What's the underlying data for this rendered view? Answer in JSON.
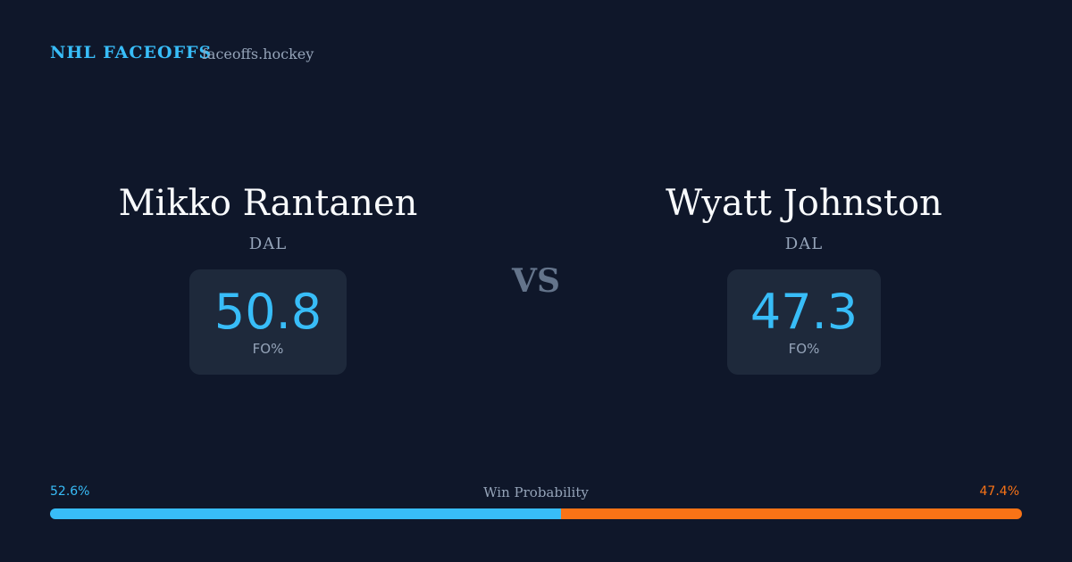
{
  "header": {
    "title": "NHL FACEOFFS",
    "site": "faceoffs.hockey"
  },
  "players": [
    {
      "name": "Mikko Rantanen",
      "team": "DAL",
      "stat": 50.8,
      "stat_label": "FO%"
    },
    {
      "name": "Wyatt Johnston",
      "team": "DAL",
      "stat": 47.3,
      "stat_label": "FO%"
    }
  ],
  "versus": "VS",
  "win_probability": {
    "label": "Win Probability",
    "values": [
      52.6,
      47.4
    ],
    "value_labels": [
      "52.6%",
      "47.4%"
    ],
    "colors": [
      "#38bdf8",
      "#f97316"
    ]
  }
}
